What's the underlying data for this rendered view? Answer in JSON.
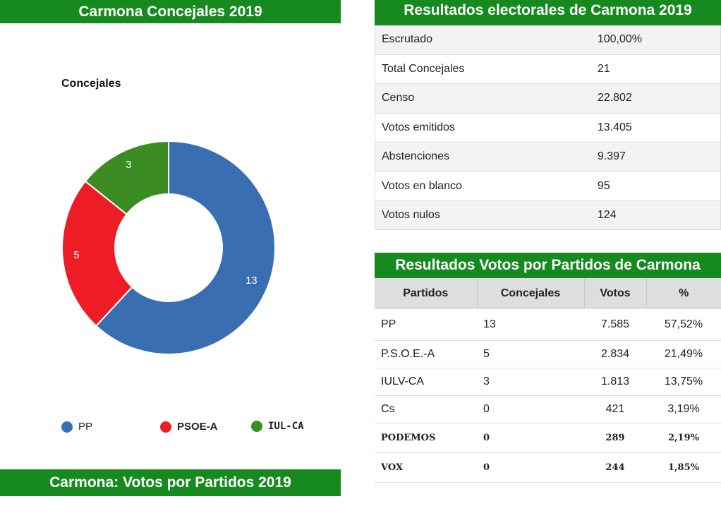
{
  "left_panel": {
    "banner": "Carmona Concejales 2019",
    "bottom_banner": "Carmona: Votos por Partidos 2019"
  },
  "chart_data": {
    "type": "pie",
    "title": "Concejales",
    "categories": [
      "PP",
      "PSOE-A",
      "IUL-CA"
    ],
    "values": [
      13,
      5,
      3
    ],
    "colors": [
      "#3a6eb2",
      "#ee1c24",
      "#3c8c24"
    ],
    "legend": [
      "PP",
      "PSOE-A",
      "IUL-CA"
    ],
    "legend_position": "bottom"
  },
  "summary": {
    "banner": "Resultados electorales de Carmona 2019",
    "rows": [
      {
        "label": "Escrutado",
        "value": "100,00%"
      },
      {
        "label": "Total Concejales",
        "value": "21"
      },
      {
        "label": "Censo",
        "value": "22.802"
      },
      {
        "label": "Votos emitidos",
        "value": "13.405"
      },
      {
        "label": "Abstenciones",
        "value": "9.397"
      },
      {
        "label": "Votos en blanco",
        "value": "95"
      },
      {
        "label": "Votos nulos",
        "value": "124"
      }
    ]
  },
  "parties": {
    "banner": "Resultados Votos por Partidos de Carmona",
    "headers": [
      "Partidos",
      "Concejales",
      "Votos",
      "%"
    ],
    "rows": [
      {
        "party": "PP",
        "seats": "13",
        "votes": "7.585",
        "pct": "57,52%"
      },
      {
        "party": "P.S.O.E.-A",
        "seats": "5",
        "votes": "2.834",
        "pct": "21,49%"
      },
      {
        "party": "IULV-CA",
        "seats": "3",
        "votes": "1.813",
        "pct": "13,75%"
      },
      {
        "party": "Cs",
        "seats": "0",
        "votes": "421",
        "pct": "3,19%"
      },
      {
        "party": "PODEMOS",
        "seats": "0",
        "votes": "289",
        "pct": "2,19%"
      },
      {
        "party": "VOX",
        "seats": "0",
        "votes": "244",
        "pct": "1,85%"
      }
    ]
  }
}
